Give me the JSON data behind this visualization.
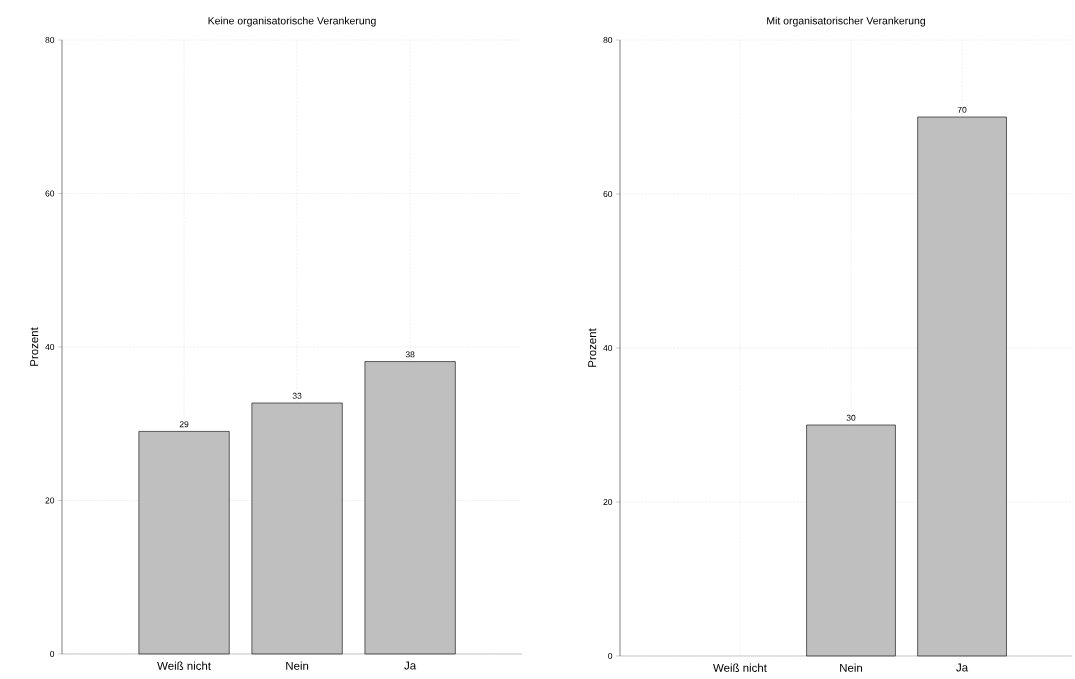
{
  "chart_data": [
    {
      "type": "bar",
      "title": "Keine organisatorische Verankerung",
      "ylabel": "Prozent",
      "categories": [
        "Weiß nicht",
        "Nein",
        "Ja"
      ],
      "values": [
        29.0,
        32.7,
        38.1
      ],
      "value_labels": [
        "29",
        "33",
        "38"
      ],
      "color": "#bfbfbf",
      "ylim": [
        0,
        80
      ],
      "yticks": [
        0,
        20,
        40,
        60,
        80
      ],
      "grid": true
    },
    {
      "type": "bar",
      "title": "Mit organisatorischer Verankerung",
      "ylabel": "Prozent",
      "categories": [
        "Weiß nicht",
        "Nein",
        "Ja"
      ],
      "values": [
        null,
        30.0,
        70.0
      ],
      "value_labels": [
        null,
        "30",
        "70"
      ],
      "color": "#bfbfbf",
      "ylim": [
        0,
        80
      ],
      "yticks": [
        0,
        20,
        40,
        60,
        80
      ],
      "grid": true
    }
  ]
}
